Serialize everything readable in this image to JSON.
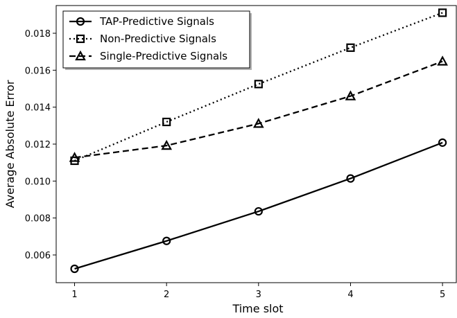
{
  "chart_data": {
    "type": "line",
    "title": "",
    "xlabel": "Time slot",
    "ylabel": "Average Absolute Error",
    "x": [
      1,
      2,
      3,
      4,
      5
    ],
    "xticks": [
      "1",
      "2",
      "3",
      "4",
      "5"
    ],
    "yticks": [
      "0.006",
      "0.008",
      "0.010",
      "0.012",
      "0.014",
      "0.016",
      "0.018"
    ],
    "xlim": [
      0.8,
      5.15
    ],
    "ylim": [
      0.0045,
      0.0195
    ],
    "legend_position": "top-left",
    "grid": false,
    "series": [
      {
        "name": "TAP-Predictive Signals",
        "values": [
          0.00525,
          0.00676,
          0.00836,
          0.01014,
          0.01208
        ],
        "linestyle": "solid",
        "marker": "circle",
        "color": "#000000"
      },
      {
        "name": "Non-Predictive Signals",
        "values": [
          0.0111,
          0.0132,
          0.01525,
          0.01722,
          0.01911
        ],
        "linestyle": "dotted",
        "marker": "square",
        "color": "#000000"
      },
      {
        "name": "Single-Predictive Signals",
        "values": [
          0.01127,
          0.01192,
          0.01311,
          0.0146,
          0.01648
        ],
        "linestyle": "dashed",
        "marker": "triangle",
        "color": "#000000"
      }
    ]
  }
}
